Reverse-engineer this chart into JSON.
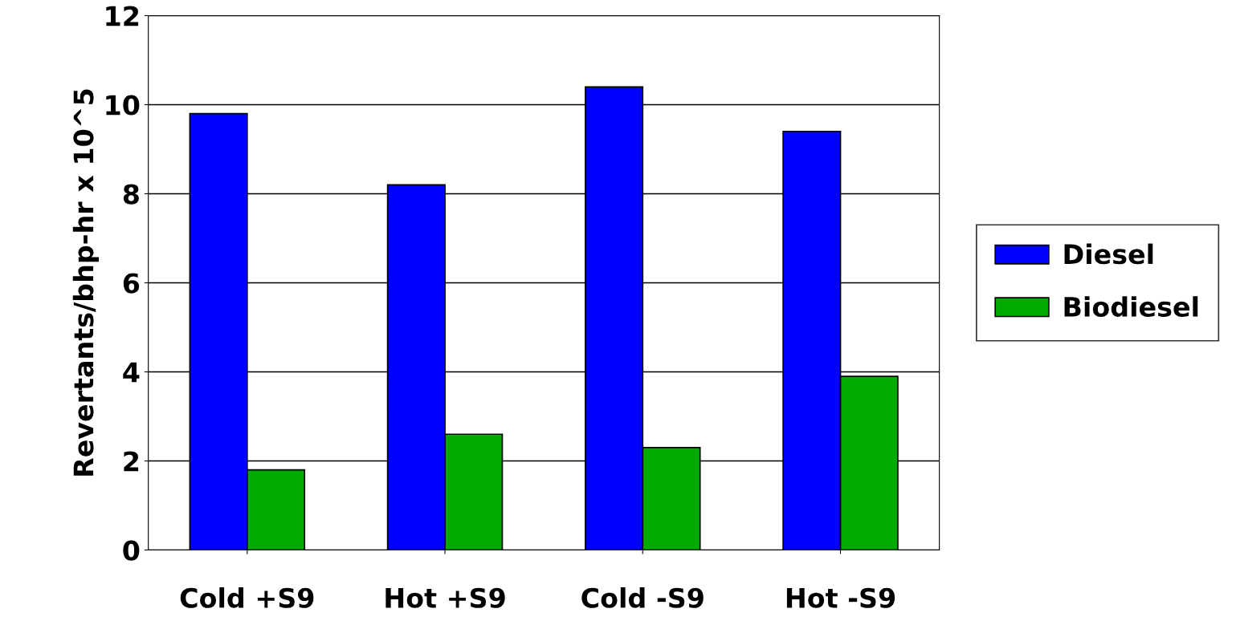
{
  "chart_data": {
    "type": "bar",
    "ylabel": "Revertants/bhp-hr x 10^5",
    "categories": [
      "Cold +S9",
      "Hot +S9",
      "Cold -S9",
      "Hot -S9"
    ],
    "series": [
      {
        "name": "Diesel",
        "color": "#0000ff",
        "values": [
          9.8,
          8.2,
          10.4,
          9.4
        ]
      },
      {
        "name": "Biodiesel",
        "color": "#00aa00",
        "values": [
          1.8,
          2.6,
          2.3,
          3.9
        ]
      }
    ],
    "ylim": [
      0,
      12
    ],
    "yticks": [
      0,
      2,
      4,
      6,
      8,
      10,
      12
    ],
    "grid": "y",
    "legend": "right"
  }
}
